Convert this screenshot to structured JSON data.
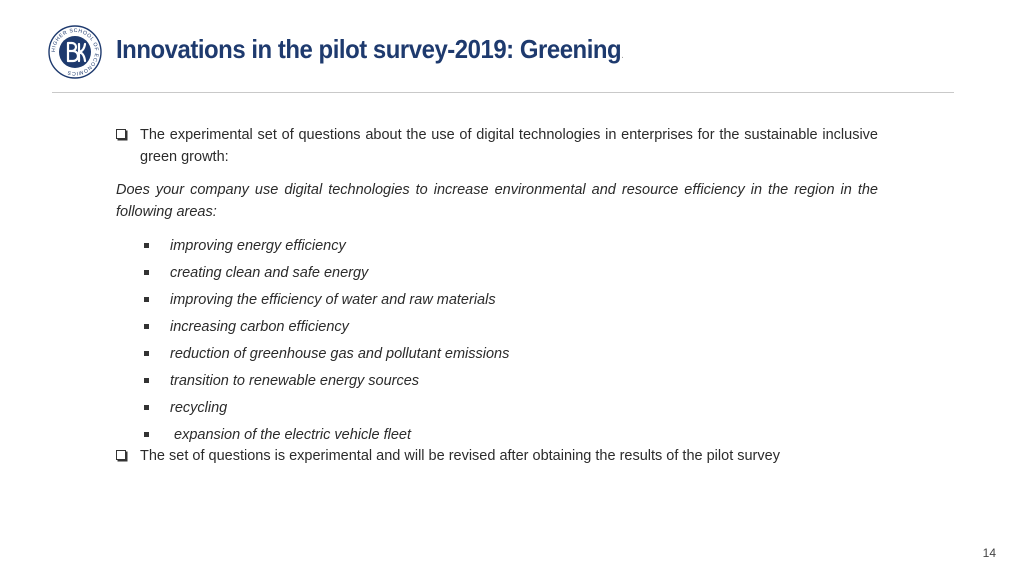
{
  "header": {
    "title": "Innovations in the pilot survey-2019: Greening",
    "title_suffix": ".",
    "logo_text": "HIGHER SCHOOL OF ECONOMICS",
    "colors": {
      "title": "#1e3a6e",
      "logo": "#1e3a6e"
    }
  },
  "content": {
    "intro": "The experimental set of questions about the use of digital technologies in enterprises for the sustainable inclusive green growth:",
    "question": "Does your company use digital technologies to increase environmental and resource efficiency in the region in the following areas:",
    "items": [
      "improving energy efficiency",
      "creating clean and safe energy",
      "improving the efficiency of water and raw materials",
      "increasing carbon efficiency",
      "reduction of greenhouse gas and pollutant emissions",
      "transition to renewable energy sources",
      "recycling",
      " expansion of the electric vehicle fleet"
    ],
    "note": "The set of questions is experimental and will be revised after obtaining the results of the pilot survey"
  },
  "footer": {
    "page_number": "14"
  }
}
